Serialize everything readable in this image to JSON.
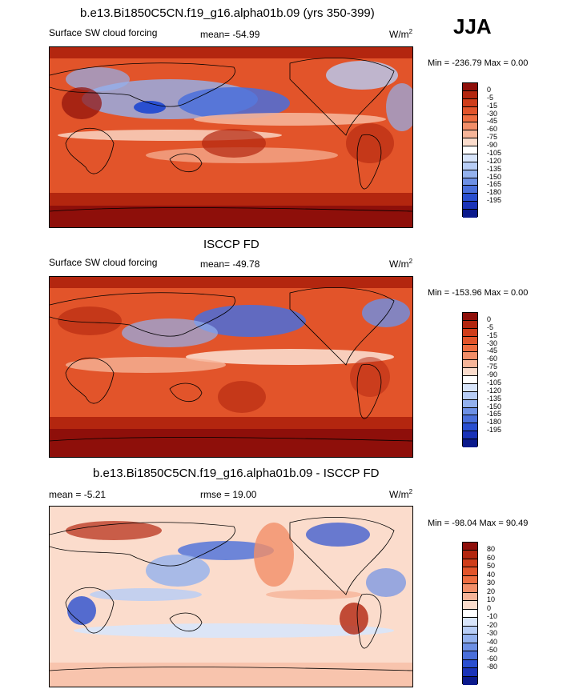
{
  "season": "JJA",
  "panels": [
    {
      "title": "b.e13.Bi1850C5CN.f19_g16.alpha01b.09 (yrs 350-399)",
      "left_label": "Surface SW cloud forcing",
      "center_label": "mean= -54.99",
      "units": "W/m",
      "units_exp": "2",
      "minmax": "Min = -236.79 Max =   0.00",
      "ticks": [
        "0",
        "-5",
        "-15",
        "-30",
        "-45",
        "-60",
        "-75",
        "-90",
        "-105",
        "-120",
        "-135",
        "-150",
        "-165",
        "-180",
        "-195"
      ],
      "colors": [
        "#8e0f0a",
        "#b3260f",
        "#cf3d1a",
        "#e2542a",
        "#ee6d40",
        "#f28e68",
        "#f6b498",
        "#fbdccc",
        "#ffffff",
        "#d8e5fb",
        "#b7cdf6",
        "#93b1ee",
        "#6d90e5",
        "#4a6fdb",
        "#2a4fd0",
        "#1a33b8",
        "#0b1a8c"
      ]
    },
    {
      "title": "ISCCP FD",
      "left_label": "Surface SW cloud forcing",
      "center_label": "mean= -49.78",
      "units": "W/m",
      "units_exp": "2",
      "minmax": "Min = -153.96 Max =   0.00",
      "ticks": [
        "0",
        "-5",
        "-15",
        "-30",
        "-45",
        "-60",
        "-75",
        "-90",
        "-105",
        "-120",
        "-135",
        "-150",
        "-165",
        "-180",
        "-195"
      ],
      "colors": [
        "#8e0f0a",
        "#b3260f",
        "#cf3d1a",
        "#e2542a",
        "#ee6d40",
        "#f28e68",
        "#f6b498",
        "#fbdccc",
        "#ffffff",
        "#d8e5fb",
        "#b7cdf6",
        "#93b1ee",
        "#6d90e5",
        "#4a6fdb",
        "#2a4fd0",
        "#1a33b8",
        "#0b1a8c"
      ]
    },
    {
      "title": "b.e13.Bi1850C5CN.f19_g16.alpha01b.09 - ISCCP FD",
      "left_label": "mean =  -5.21",
      "center_label": "rmse =  19.00",
      "units": "W/m",
      "units_exp": "2",
      "minmax": "Min = -98.04 Max =  90.49",
      "ticks": [
        "80",
        "60",
        "50",
        "40",
        "30",
        "20",
        "10",
        "0",
        "-10",
        "-20",
        "-30",
        "-40",
        "-50",
        "-60",
        "-80"
      ],
      "colors": [
        "#8e0f0a",
        "#b3260f",
        "#cf3d1a",
        "#e2542a",
        "#ee6d40",
        "#f28e68",
        "#f6b498",
        "#fbdccc",
        "#ffffff",
        "#d8e5fb",
        "#b7cdf6",
        "#93b1ee",
        "#6d90e5",
        "#4a6fdb",
        "#2a4fd0",
        "#1a33b8",
        "#0b1a8c"
      ]
    }
  ]
}
